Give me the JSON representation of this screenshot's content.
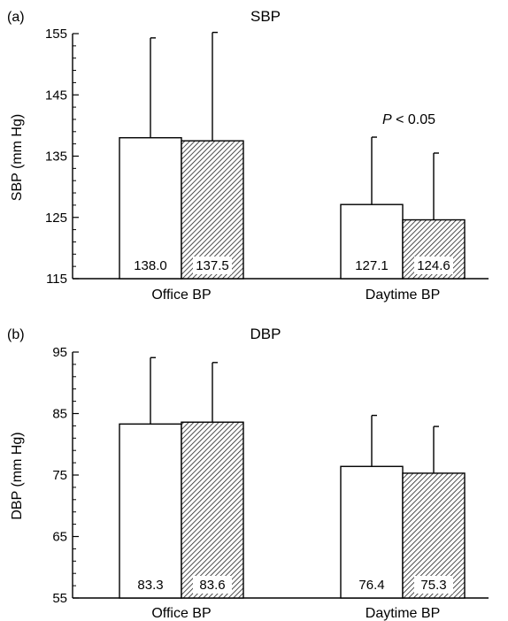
{
  "chart_data": [
    {
      "type": "bar",
      "panel_label": "(a)",
      "title": "SBP",
      "ylabel": "SBP (mm Hg)",
      "ylim": [
        115,
        155
      ],
      "yticks": [
        115,
        125,
        135,
        145,
        155
      ],
      "categories": [
        "Office BP",
        "Daytime BP"
      ],
      "series": [
        {
          "style": "open",
          "values": [
            138.0,
            127.1
          ],
          "value_labels": [
            "138.0",
            "127.1"
          ],
          "error_upper": [
            154.3,
            138.1
          ]
        },
        {
          "style": "hatched",
          "values": [
            137.5,
            124.6
          ],
          "value_labels": [
            "137.5",
            "124.6"
          ],
          "error_upper": [
            155.2,
            135.5
          ]
        }
      ],
      "annotation": {
        "italic": "P",
        "text": " < 0.05",
        "category": "Daytime BP"
      }
    },
    {
      "type": "bar",
      "panel_label": "(b)",
      "title": "DBP",
      "ylabel": "DBP (mm Hg)",
      "ylim": [
        55,
        95
      ],
      "yticks": [
        55,
        65,
        75,
        85,
        95
      ],
      "categories": [
        "Office BP",
        "Daytime BP"
      ],
      "series": [
        {
          "style": "open",
          "values": [
            83.3,
            76.4
          ],
          "value_labels": [
            "83.3",
            "76.4"
          ],
          "error_upper": [
            94.1,
            84.7
          ]
        },
        {
          "style": "hatched",
          "values": [
            83.6,
            75.3
          ],
          "value_labels": [
            "83.6",
            "75.3"
          ],
          "error_upper": [
            93.3,
            82.9
          ]
        }
      ]
    }
  ]
}
